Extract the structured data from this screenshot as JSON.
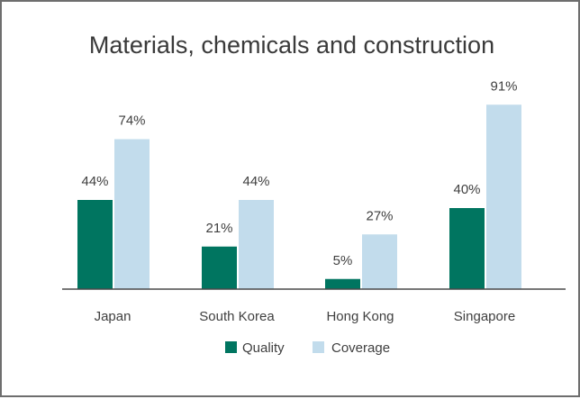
{
  "chart_data": {
    "type": "bar",
    "title": "Materials, chemicals and construction",
    "categories": [
      "Japan",
      "South Korea",
      "Hong Kong",
      "Singapore"
    ],
    "series": [
      {
        "name": "Quality",
        "color": "#007560",
        "values": [
          44,
          21,
          5,
          40
        ],
        "labels": [
          "44%",
          "21%",
          "5%",
          "40%"
        ]
      },
      {
        "name": "Coverage",
        "color": "#c2dcec",
        "values": [
          74,
          44,
          27,
          91
        ],
        "labels": [
          "74%",
          "44%",
          "27%",
          "91%"
        ]
      }
    ],
    "ylim": [
      0,
      100
    ],
    "grid": false,
    "legend_position": "bottom"
  }
}
